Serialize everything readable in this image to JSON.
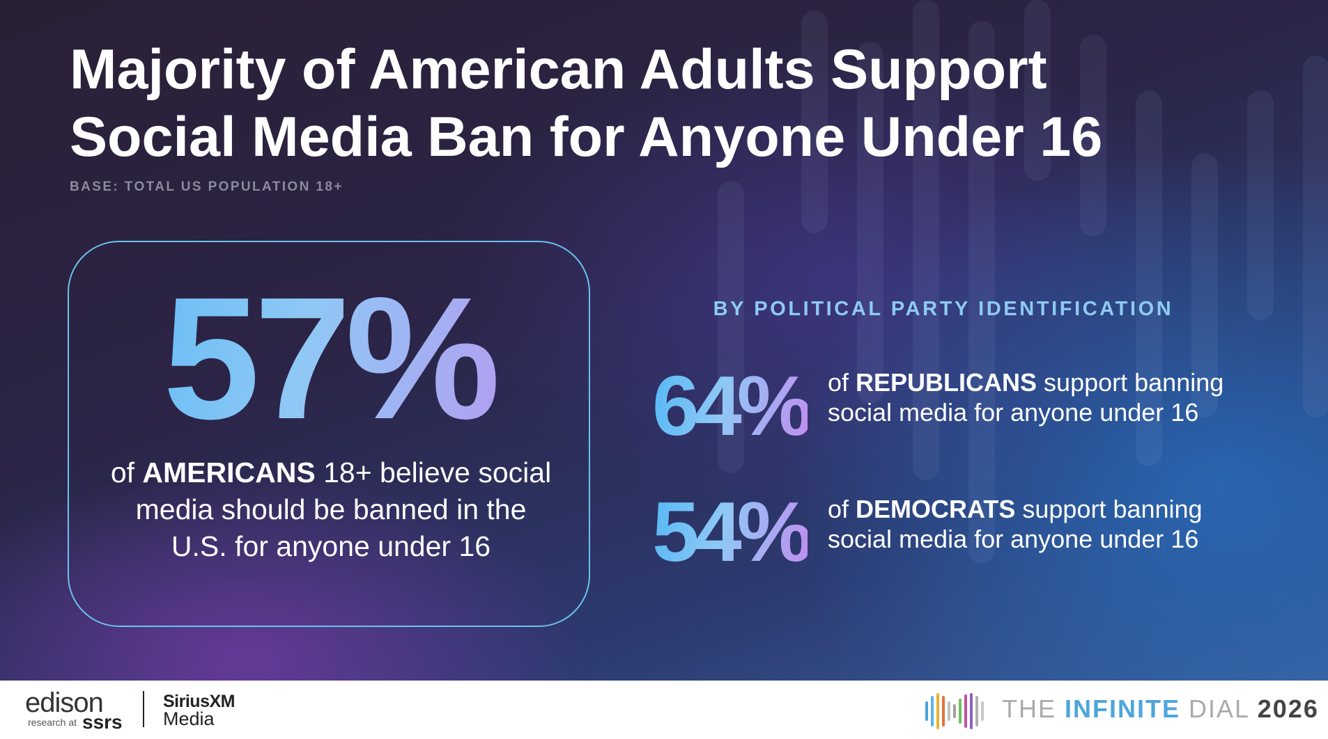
{
  "title": "Majority of American Adults Support Social Media Ban for Anyone Under 16",
  "base_note": "BASE: TOTAL US POPULATION 18+",
  "headline": {
    "stat": "57%",
    "prefix": "of ",
    "emphasis": "AMERICANS",
    "suffix": " 18+ believe social media should be banned in the U.S. for anyone under 16"
  },
  "party_section": {
    "heading": "BY POLITICAL PARTY IDENTIFICATION",
    "items": [
      {
        "stat": "64%",
        "prefix": "of ",
        "emphasis": "REPUBLICANS",
        "suffix": " support banning social media for anyone under 16"
      },
      {
        "stat": "54%",
        "prefix": "of ",
        "emphasis": "DEMOCRATS",
        "suffix": " support banning social media for anyone under 16"
      }
    ]
  },
  "footer": {
    "edison": "edison",
    "research_at": "research at",
    "ssrs": "ssrs",
    "siriusxm": "SiriusXM",
    "media": "Media",
    "dial_the": "THE",
    "dial_infinite": "INFINITE",
    "dial_dial": "DIAL",
    "dial_year": "2026"
  }
}
